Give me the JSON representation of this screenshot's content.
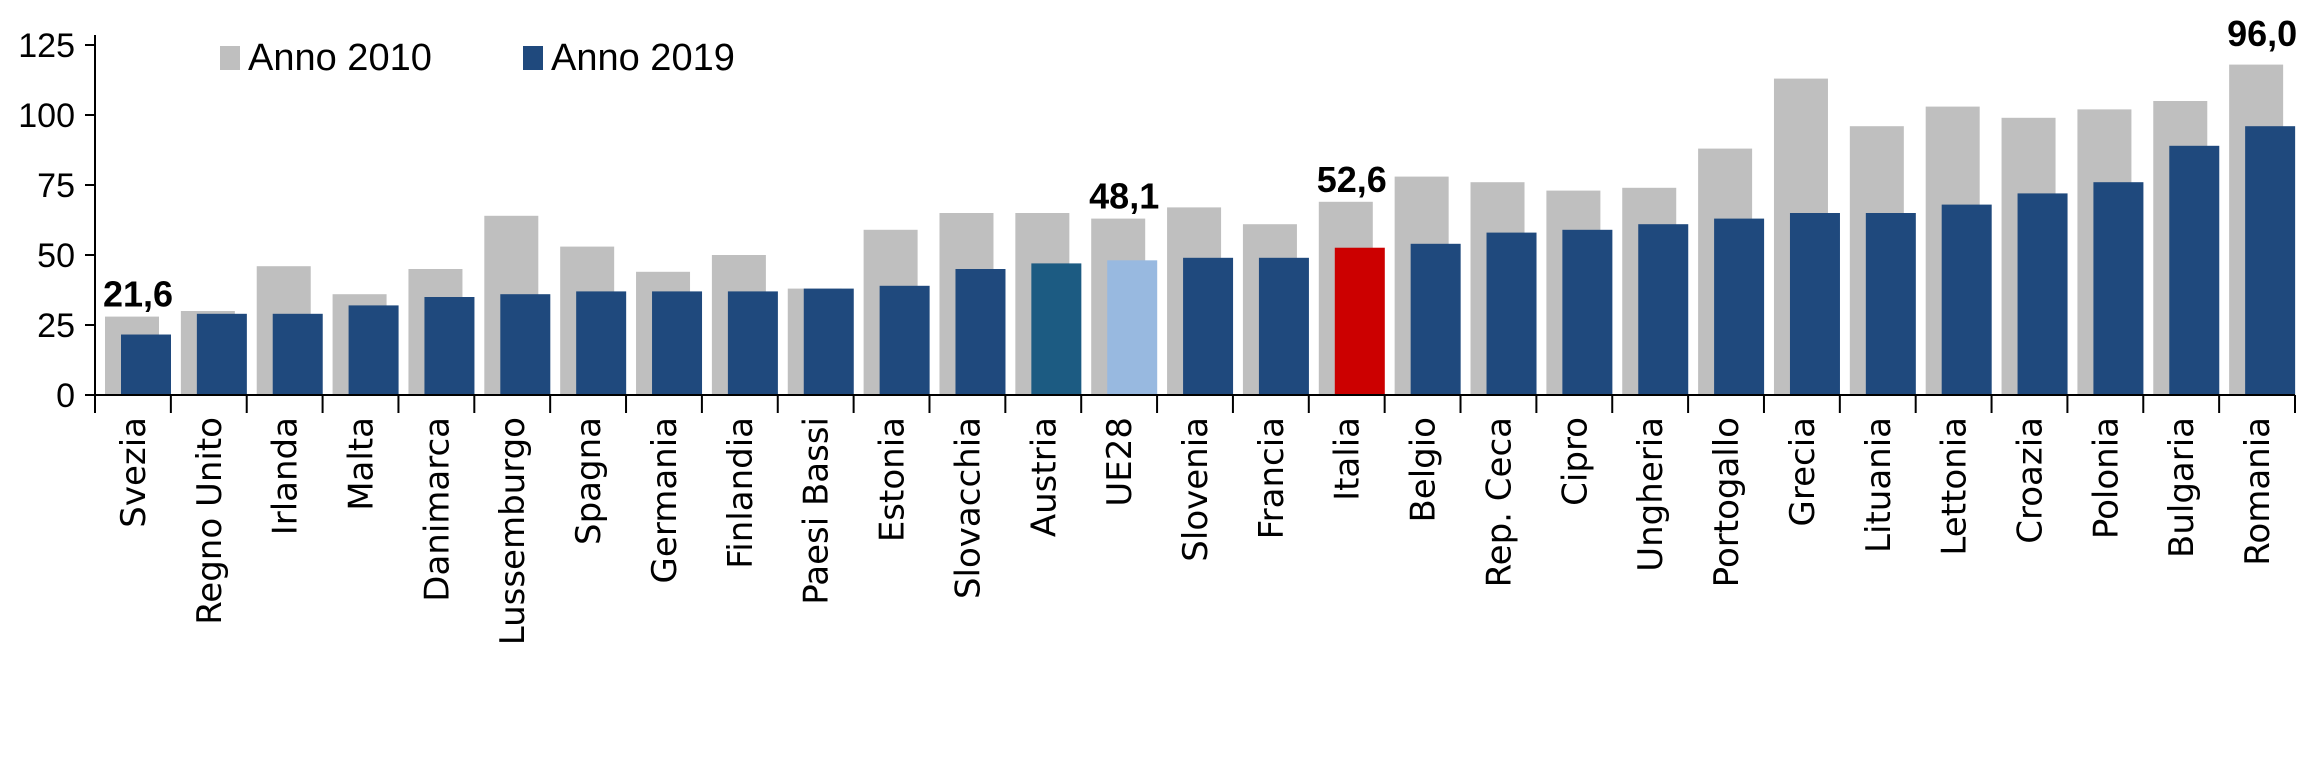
{
  "chart_data": {
    "type": "bar",
    "title": "",
    "xlabel": "",
    "ylabel": "",
    "ylim": [
      0,
      125
    ],
    "yticks": [
      0,
      25,
      50,
      75,
      100,
      125
    ],
    "grid": false,
    "legend_position": "top-left",
    "categories": [
      "Svezia",
      "Regno Unito",
      "Irlanda",
      "Malta",
      "Danimarca",
      "Lussemburgo",
      "Spagna",
      "Germania",
      "Finlandia",
      "Paesi Bassi",
      "Estonia",
      "Slovacchia",
      "Austria",
      "UE28",
      "Slovenia",
      "Francia",
      "Italia",
      "Belgio",
      "Rep. Ceca",
      "Cipro",
      "Ungheria",
      "Portogallo",
      "Grecia",
      "Lituania",
      "Lettonia",
      "Croazia",
      "Polonia",
      "Bulgaria",
      "Romania"
    ],
    "series": [
      {
        "name": "Anno 2010",
        "color": "#bfbfbf",
        "values": [
          28,
          30,
          46,
          36,
          45,
          64,
          53,
          44,
          50,
          38,
          59,
          65,
          65,
          63,
          67,
          61,
          69,
          78,
          76,
          73,
          74,
          88,
          113,
          96,
          103,
          99,
          102,
          105,
          118
        ]
      },
      {
        "name": "Anno 2019",
        "color": "#1f497d",
        "values": [
          21.6,
          29,
          29,
          32,
          35,
          36,
          37,
          37,
          37,
          38,
          39,
          45,
          47,
          48.1,
          49,
          49,
          52.6,
          54,
          58,
          59,
          61,
          63,
          65,
          65,
          68,
          72,
          76,
          89,
          96.0
        ]
      }
    ],
    "highlight_colors": {
      "Austria": "#1c5b82",
      "UE28": "#98b9e0",
      "Italia": "#cc0000"
    },
    "annotations": [
      {
        "category": "Svezia",
        "text": "21,6"
      },
      {
        "category": "UE28",
        "text": "48,1"
      },
      {
        "category": "Italia",
        "text": "52,6"
      },
      {
        "category": "Romania",
        "text": "96,0"
      }
    ]
  }
}
